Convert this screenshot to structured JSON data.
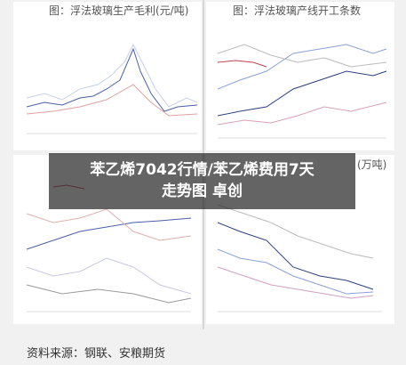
{
  "panels": [
    {
      "title": "图：浮法玻璃生产毛利(元/吨)"
    },
    {
      "title": "图：浮法玻璃产线开工条数"
    },
    {
      "title": "(万吨)"
    }
  ],
  "overlay": {
    "line1": "苯乙烯7042行情/苯乙烯费用7天",
    "line2": "走势图 卓创"
  },
  "source": "资料来源：钢联、安粮期货"
}
